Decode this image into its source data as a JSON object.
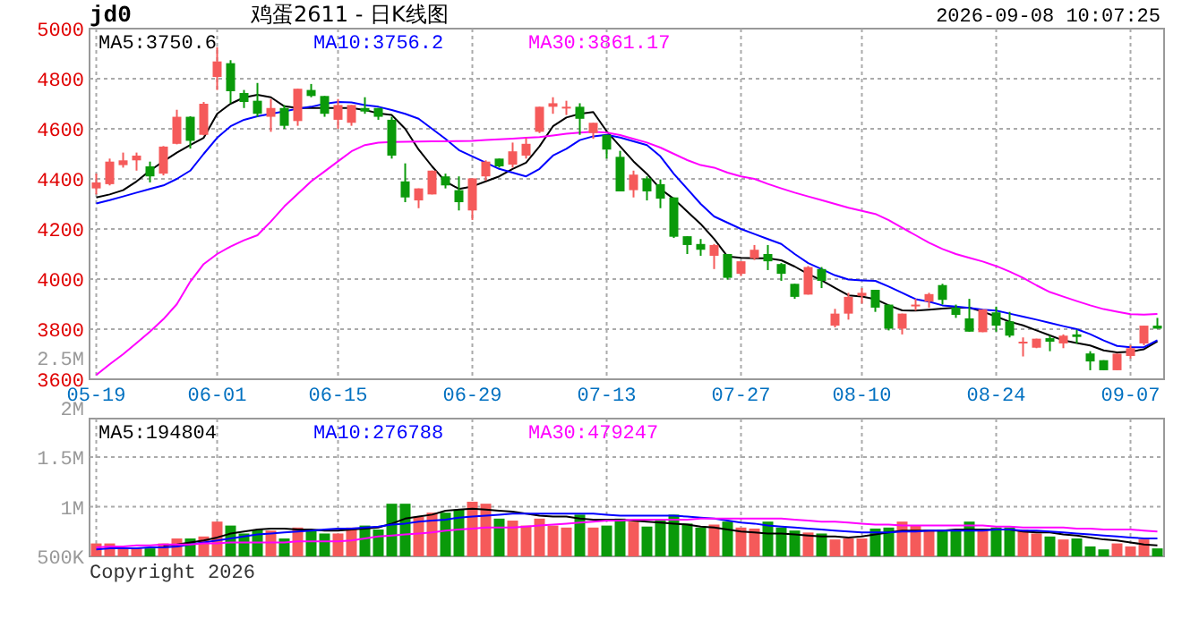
{
  "chart_data": [
    {
      "type": "candlestick",
      "title": "jd0",
      "subtitle": "鸡蛋2611 - 日K线图",
      "annotations": [
        "2026-09-08 10:07:25"
      ],
      "categories": [
        "05-19",
        null,
        null,
        null,
        null,
        null,
        null,
        null,
        null,
        "06-01",
        null,
        null,
        null,
        null,
        null,
        null,
        null,
        null,
        "06-15",
        null,
        null,
        null,
        null,
        null,
        null,
        null,
        null,
        null,
        "06-29",
        null,
        null,
        null,
        null,
        null,
        null,
        null,
        null,
        null,
        "07-13",
        null,
        null,
        null,
        null,
        null,
        null,
        null,
        null,
        null,
        "07-27",
        null,
        null,
        null,
        null,
        null,
        null,
        null,
        null,
        "08-10",
        null,
        null,
        null,
        null,
        null,
        null,
        null,
        null,
        null,
        "08-24",
        null,
        null,
        null,
        null,
        null,
        null,
        null,
        null,
        null,
        "09-07",
        null,
        null
      ],
      "ohlc": [
        [
          4362,
          4421,
          4338,
          4386
        ],
        [
          4379,
          4481,
          4374,
          4469
        ],
        [
          4455,
          4505,
          4445,
          4474
        ],
        [
          4474,
          4505,
          4433,
          4493
        ],
        [
          4450,
          4469,
          4386,
          4410
        ],
        [
          4421,
          4531,
          4414,
          4529
        ],
        [
          4540,
          4676,
          4538,
          4648
        ],
        [
          4648,
          4650,
          4521,
          4552
        ],
        [
          4576,
          4707,
          4574,
          4700
        ],
        [
          4807,
          4926,
          4755,
          4869
        ],
        [
          4862,
          4874,
          4702,
          4750
        ],
        [
          4743,
          4755,
          4683,
          4707
        ],
        [
          4712,
          4783,
          4648,
          4660
        ],
        [
          4648,
          4719,
          4588,
          4683
        ],
        [
          4683,
          4695,
          4600,
          4612
        ],
        [
          4631,
          4760,
          4612,
          4760
        ],
        [
          4755,
          4779,
          4726,
          4731
        ],
        [
          4731,
          4731,
          4648,
          4660
        ],
        [
          4636,
          4719,
          4600,
          4695
        ],
        [
          4624,
          4695,
          4612,
          4695
        ],
        [
          4683,
          4726,
          4660,
          4669
        ],
        [
          4683,
          4683,
          4636,
          4648
        ],
        [
          4636,
          4648,
          4481,
          4493
        ],
        [
          4390,
          4462,
          4307,
          4326
        ],
        [
          4314,
          4362,
          4283,
          4362
        ],
        [
          4338,
          4433,
          4338,
          4433
        ],
        [
          4410,
          4421,
          4362,
          4374
        ],
        [
          4355,
          4410,
          4274,
          4307
        ],
        [
          4274,
          4402,
          4236,
          4402
        ],
        [
          4410,
          4474,
          4393,
          4469
        ],
        [
          4481,
          4481,
          4445,
          4450
        ],
        [
          4457,
          4545,
          4445,
          4510
        ],
        [
          4493,
          4564,
          4481,
          4540
        ],
        [
          4588,
          4688,
          4583,
          4688
        ],
        [
          4688,
          4726,
          4660,
          4702
        ],
        [
          4683,
          4712,
          4655,
          4688
        ],
        [
          4688,
          4702,
          4576,
          4640
        ],
        [
          4583,
          4624,
          4560,
          4624
        ],
        [
          4576,
          4576,
          4481,
          4517
        ],
        [
          4488,
          4512,
          4350,
          4350
        ],
        [
          4355,
          4433,
          4326,
          4417
        ],
        [
          4402,
          4410,
          4314,
          4350
        ],
        [
          4379,
          4398,
          4283,
          4321
        ],
        [
          4326,
          4326,
          4164,
          4169
        ],
        [
          4171,
          4171,
          4100,
          4136
        ],
        [
          4140,
          4160,
          4093,
          4117
        ],
        [
          4093,
          4140,
          4040,
          4136
        ],
        [
          4100,
          4100,
          3998,
          4005
        ],
        [
          4021,
          4071,
          4012,
          4071
        ],
        [
          4083,
          4136,
          4076,
          4117
        ],
        [
          4100,
          4136,
          4036,
          4071
        ],
        [
          4060,
          4064,
          3993,
          4021
        ],
        [
          3981,
          3981,
          3921,
          3929
        ],
        [
          3938,
          4052,
          3938,
          4048
        ],
        [
          4040,
          4048,
          3964,
          3993
        ],
        [
          3814,
          3881,
          3807,
          3862
        ],
        [
          3862,
          3945,
          3838,
          3929
        ],
        [
          3933,
          3964,
          3902,
          3945
        ],
        [
          3957,
          3957,
          3869,
          3886
        ],
        [
          3898,
          3898,
          3795,
          3802
        ],
        [
          3802,
          3862,
          3779,
          3862
        ],
        [
          3893,
          3921,
          3874,
          3898
        ],
        [
          3910,
          3945,
          3886,
          3940
        ],
        [
          3976,
          3981,
          3898,
          3917
        ],
        [
          3886,
          3898,
          3845,
          3857
        ],
        [
          3843,
          3921,
          3790,
          3790
        ],
        [
          3788,
          3879,
          3788,
          3879
        ],
        [
          3867,
          3890,
          3790,
          3814
        ],
        [
          3831,
          3869,
          3767,
          3774
        ],
        [
          3745,
          3767,
          3691,
          3750
        ],
        [
          3726,
          3762,
          3724,
          3762
        ],
        [
          3764,
          3774,
          3712,
          3750
        ],
        [
          3743,
          3779,
          3724,
          3774
        ],
        [
          3779,
          3798,
          3743,
          3769
        ],
        [
          3703,
          3712,
          3636,
          3671
        ],
        [
          3676,
          3676,
          3636,
          3636
        ],
        [
          3636,
          3702,
          3636,
          3702
        ],
        [
          3693,
          3736,
          3683,
          3724
        ],
        [
          3743,
          3814,
          3736,
          3814
        ],
        [
          3814,
          3845,
          3802,
          3802
        ]
      ],
      "colors": [
        "#f55a5a",
        "#f55a5a",
        "#f55a5a",
        "#f55a5a",
        "#0a9a0a",
        "#f55a5a",
        "#f55a5a",
        "#0a9a0a",
        "#f55a5a",
        "#f55a5a",
        "#0a9a0a",
        "#0a9a0a",
        "#0a9a0a",
        "#f55a5a",
        "#0a9a0a",
        "#f55a5a",
        "#0a9a0a",
        "#0a9a0a",
        "#f55a5a",
        "#f55a5a",
        "#0a9a0a",
        "#0a9a0a",
        "#0a9a0a",
        "#0a9a0a",
        "#f55a5a",
        "#f55a5a",
        "#0a9a0a",
        "#0a9a0a",
        "#f55a5a",
        "#f55a5a",
        "#0a9a0a",
        "#f55a5a",
        "#f55a5a",
        "#f55a5a",
        "#f55a5a",
        "#f55a5a",
        "#0a9a0a",
        "#f55a5a",
        "#0a9a0a",
        "#0a9a0a",
        "#f55a5a",
        "#0a9a0a",
        "#0a9a0a",
        "#0a9a0a",
        "#0a9a0a",
        "#0a9a0a",
        "#f55a5a",
        "#0a9a0a",
        "#f55a5a",
        "#f55a5a",
        "#0a9a0a",
        "#0a9a0a",
        "#0a9a0a",
        "#f55a5a",
        "#0a9a0a",
        "#f55a5a",
        "#f55a5a",
        "#f55a5a",
        "#0a9a0a",
        "#0a9a0a",
        "#f55a5a",
        "#f55a5a",
        "#f55a5a",
        "#0a9a0a",
        "#0a9a0a",
        "#0a9a0a",
        "#f55a5a",
        "#0a9a0a",
        "#0a9a0a",
        "#f55a5a",
        "#f55a5a",
        "#0a9a0a",
        "#f55a5a",
        "#0a9a0a",
        "#0a9a0a",
        "#0a9a0a",
        "#f55a5a",
        "#f55a5a",
        "#f55a5a",
        "#0a9a0a"
      ],
      "series": [
        {
          "type": "line",
          "name": "MA5:3750.6",
          "color": "#000000",
          "values": [
            4326,
            4338,
            4355,
            4390,
            4433,
            4470,
            4505,
            4535,
            4564,
            4660,
            4700,
            4725,
            4736,
            4726,
            4690,
            4683,
            4683,
            4683,
            4683,
            4683,
            4675,
            4662,
            4655,
            4600,
            4517,
            4450,
            4390,
            4360,
            4370,
            4390,
            4410,
            4440,
            4465,
            4530,
            4610,
            4645,
            4660,
            4667,
            4590,
            4530,
            4470,
            4420,
            4360,
            4320,
            4270,
            4220,
            4160,
            4090,
            4085,
            4083,
            4083,
            4075,
            4050,
            4020,
            3995,
            3965,
            3935,
            3930,
            3920,
            3895,
            3875,
            3874,
            3878,
            3882,
            3886,
            3886,
            3870,
            3850,
            3830,
            3815,
            3795,
            3775,
            3755,
            3745,
            3735,
            3715,
            3707,
            3710,
            3720,
            3751
          ]
        },
        {
          "type": "line",
          "name": "MA10:3756.2",
          "color": "#0000ff",
          "values": [
            4302,
            4315,
            4330,
            4345,
            4360,
            4374,
            4400,
            4433,
            4500,
            4564,
            4610,
            4636,
            4650,
            4660,
            4670,
            4680,
            4688,
            4700,
            4707,
            4705,
            4695,
            4688,
            4675,
            4660,
            4640,
            4600,
            4560,
            4515,
            4490,
            4465,
            4440,
            4425,
            4410,
            4440,
            4493,
            4520,
            4555,
            4570,
            4576,
            4565,
            4550,
            4535,
            4490,
            4420,
            4360,
            4300,
            4250,
            4225,
            4200,
            4180,
            4160,
            4140,
            4100,
            4064,
            4040,
            4015,
            3998,
            3995,
            3993,
            3970,
            3945,
            3920,
            3910,
            3895,
            3890,
            3885,
            3878,
            3874,
            3862,
            3850,
            3838,
            3825,
            3812,
            3800,
            3780,
            3755,
            3733,
            3728,
            3728,
            3756
          ]
        },
        {
          "type": "line",
          "name": "MA30:3861.17",
          "color": "#ff00ff",
          "values": [
            3617,
            3660,
            3700,
            3745,
            3790,
            3840,
            3900,
            3990,
            4060,
            4100,
            4130,
            4155,
            4175,
            4230,
            4290,
            4340,
            4390,
            4430,
            4470,
            4510,
            4535,
            4545,
            4547,
            4548,
            4549,
            4550,
            4550,
            4551,
            4552,
            4555,
            4558,
            4561,
            4564,
            4567,
            4573,
            4580,
            4585,
            4588,
            4585,
            4575,
            4560,
            4545,
            4525,
            4500,
            4475,
            4455,
            4445,
            4425,
            4410,
            4400,
            4380,
            4362,
            4345,
            4330,
            4315,
            4300,
            4285,
            4272,
            4260,
            4235,
            4205,
            4175,
            4145,
            4120,
            4100,
            4085,
            4070,
            4052,
            4030,
            4005,
            3975,
            3948,
            3930,
            3912,
            3895,
            3880,
            3870,
            3860,
            3858,
            3861
          ]
        }
      ],
      "ylim": [
        3600,
        5000
      ],
      "yticks": [
        3600,
        3800,
        4000,
        4200,
        4400,
        4600,
        4800,
        5000
      ],
      "grid": true,
      "legend": "top left"
    },
    {
      "type": "bar",
      "annotations": [
        "Copyright 2026"
      ],
      "categories": [
        null,
        null,
        null,
        null,
        null,
        null,
        null,
        null,
        null,
        null,
        null,
        null,
        null,
        null,
        null,
        null,
        null,
        null,
        null,
        null,
        null,
        null,
        null,
        null,
        null,
        null,
        null,
        null,
        null,
        null,
        null,
        null,
        null,
        null,
        null,
        null,
        null,
        null,
        null,
        null,
        null,
        null,
        null,
        null,
        null,
        null,
        null,
        null,
        null,
        null,
        null,
        null,
        null,
        null,
        null,
        null,
        null,
        null,
        null,
        null,
        null,
        null,
        null,
        null,
        null,
        null,
        null,
        null,
        null,
        null,
        null,
        null,
        null,
        null,
        null,
        null,
        null,
        null,
        null,
        null
      ],
      "tick_labels": "y",
      "values": [
        630000,
        630000,
        580000,
        580000,
        580000,
        630000,
        680000,
        680000,
        700000,
        850000,
        810000,
        730000,
        770000,
        760000,
        680000,
        790000,
        770000,
        730000,
        730000,
        790000,
        810000,
        770000,
        1030000,
        1030000,
        900000,
        940000,
        940000,
        970000,
        1050000,
        1030000,
        880000,
        860000,
        810000,
        880000,
        810000,
        790000,
        920000,
        790000,
        810000,
        880000,
        850000,
        800000,
        860000,
        920000,
        830000,
        790000,
        820000,
        850000,
        790000,
        780000,
        850000,
        790000,
        760000,
        740000,
        730000,
        670000,
        680000,
        680000,
        780000,
        790000,
        850000,
        810000,
        770000,
        770000,
        770000,
        850000,
        760000,
        790000,
        790000,
        770000,
        730000,
        700000,
        670000,
        680000,
        600000,
        570000,
        630000,
        600000,
        670000,
        580000
      ],
      "colors": [
        "#f55a5a",
        "#f55a5a",
        "#f55a5a",
        "#f55a5a",
        "#0a9a0a",
        "#f55a5a",
        "#f55a5a",
        "#0a9a0a",
        "#f55a5a",
        "#f55a5a",
        "#0a9a0a",
        "#0a9a0a",
        "#0a9a0a",
        "#f55a5a",
        "#0a9a0a",
        "#f55a5a",
        "#0a9a0a",
        "#0a9a0a",
        "#f55a5a",
        "#f55a5a",
        "#0a9a0a",
        "#0a9a0a",
        "#0a9a0a",
        "#0a9a0a",
        "#f55a5a",
        "#f55a5a",
        "#0a9a0a",
        "#0a9a0a",
        "#f55a5a",
        "#f55a5a",
        "#0a9a0a",
        "#f55a5a",
        "#f55a5a",
        "#f55a5a",
        "#f55a5a",
        "#f55a5a",
        "#0a9a0a",
        "#f55a5a",
        "#0a9a0a",
        "#0a9a0a",
        "#f55a5a",
        "#0a9a0a",
        "#0a9a0a",
        "#0a9a0a",
        "#0a9a0a",
        "#0a9a0a",
        "#f55a5a",
        "#0a9a0a",
        "#f55a5a",
        "#f55a5a",
        "#0a9a0a",
        "#0a9a0a",
        "#0a9a0a",
        "#f55a5a",
        "#0a9a0a",
        "#f55a5a",
        "#f55a5a",
        "#f55a5a",
        "#0a9a0a",
        "#0a9a0a",
        "#f55a5a",
        "#f55a5a",
        "#f55a5a",
        "#0a9a0a",
        "#0a9a0a",
        "#0a9a0a",
        "#f55a5a",
        "#0a9a0a",
        "#0a9a0a",
        "#f55a5a",
        "#f55a5a",
        "#0a9a0a",
        "#f55a5a",
        "#0a9a0a",
        "#0a9a0a",
        "#0a9a0a",
        "#f55a5a",
        "#f55a5a",
        "#f55a5a",
        "#0a9a0a"
      ],
      "series": [
        {
          "type": "line",
          "name": "MA5:194804",
          "color": "#000000",
          "values": [
            null,
            null,
            null,
            null,
            null,
            610000,
            620000,
            640000,
            660000,
            690000,
            730000,
            750000,
            770000,
            780000,
            780000,
            770000,
            770000,
            760000,
            760000,
            770000,
            780000,
            790000,
            830000,
            880000,
            900000,
            920000,
            960000,
            970000,
            980000,
            970000,
            960000,
            950000,
            930000,
            910000,
            900000,
            900000,
            880000,
            870000,
            870000,
            870000,
            860000,
            850000,
            840000,
            830000,
            820000,
            800000,
            790000,
            770000,
            750000,
            740000,
            730000,
            730000,
            720000,
            710000,
            700000,
            700000,
            690000,
            700000,
            720000,
            740000,
            760000,
            760000,
            760000,
            760000,
            770000,
            770000,
            770000,
            770000,
            770000,
            750000,
            740000,
            740000,
            720000,
            710000,
            690000,
            670000,
            660000,
            640000,
            620000,
            610000
          ]
        },
        {
          "type": "line",
          "name": "MA10:276788",
          "color": "#0000ff",
          "values": [
            570000,
            580000,
            580000,
            580000,
            590000,
            590000,
            600000,
            620000,
            640000,
            660000,
            680000,
            700000,
            720000,
            730000,
            740000,
            750000,
            760000,
            770000,
            780000,
            780000,
            790000,
            800000,
            820000,
            830000,
            850000,
            860000,
            870000,
            890000,
            900000,
            910000,
            920000,
            930000,
            930000,
            930000,
            930000,
            930000,
            930000,
            930000,
            920000,
            910000,
            910000,
            910000,
            910000,
            910000,
            900000,
            890000,
            880000,
            860000,
            840000,
            830000,
            810000,
            800000,
            790000,
            780000,
            770000,
            760000,
            750000,
            740000,
            740000,
            740000,
            750000,
            750000,
            760000,
            760000,
            760000,
            760000,
            760000,
            770000,
            770000,
            760000,
            760000,
            750000,
            740000,
            730000,
            720000,
            710000,
            700000,
            690000,
            680000,
            680000
          ]
        },
        {
          "type": "line",
          "name": "MA30:479247",
          "color": "#ff00ff",
          "values": [
            590000,
            600000,
            600000,
            610000,
            610000,
            620000,
            620000,
            620000,
            630000,
            630000,
            640000,
            640000,
            640000,
            640000,
            640000,
            650000,
            650000,
            650000,
            650000,
            660000,
            680000,
            700000,
            710000,
            720000,
            730000,
            740000,
            760000,
            770000,
            780000,
            790000,
            790000,
            790000,
            800000,
            810000,
            820000,
            830000,
            840000,
            850000,
            860000,
            860000,
            870000,
            870000,
            870000,
            870000,
            870000,
            880000,
            880000,
            880000,
            880000,
            880000,
            880000,
            880000,
            870000,
            860000,
            850000,
            850000,
            840000,
            830000,
            820000,
            820000,
            810000,
            810000,
            810000,
            810000,
            810000,
            810000,
            810000,
            800000,
            800000,
            790000,
            790000,
            790000,
            790000,
            780000,
            780000,
            770000,
            770000,
            770000,
            760000,
            750000
          ]
        }
      ],
      "ylim": [
        500000,
        2500000
      ],
      "yticks": [
        {
          "value": 500000,
          "label": "500K"
        },
        {
          "value": 1000000,
          "label": "1M"
        },
        {
          "value": 1500000,
          "label": "1.5M"
        },
        {
          "value": 2000000,
          "label": "2M"
        },
        {
          "value": 2500000,
          "label": "2.5M"
        }
      ],
      "grid": true,
      "legend": "top left"
    }
  ]
}
